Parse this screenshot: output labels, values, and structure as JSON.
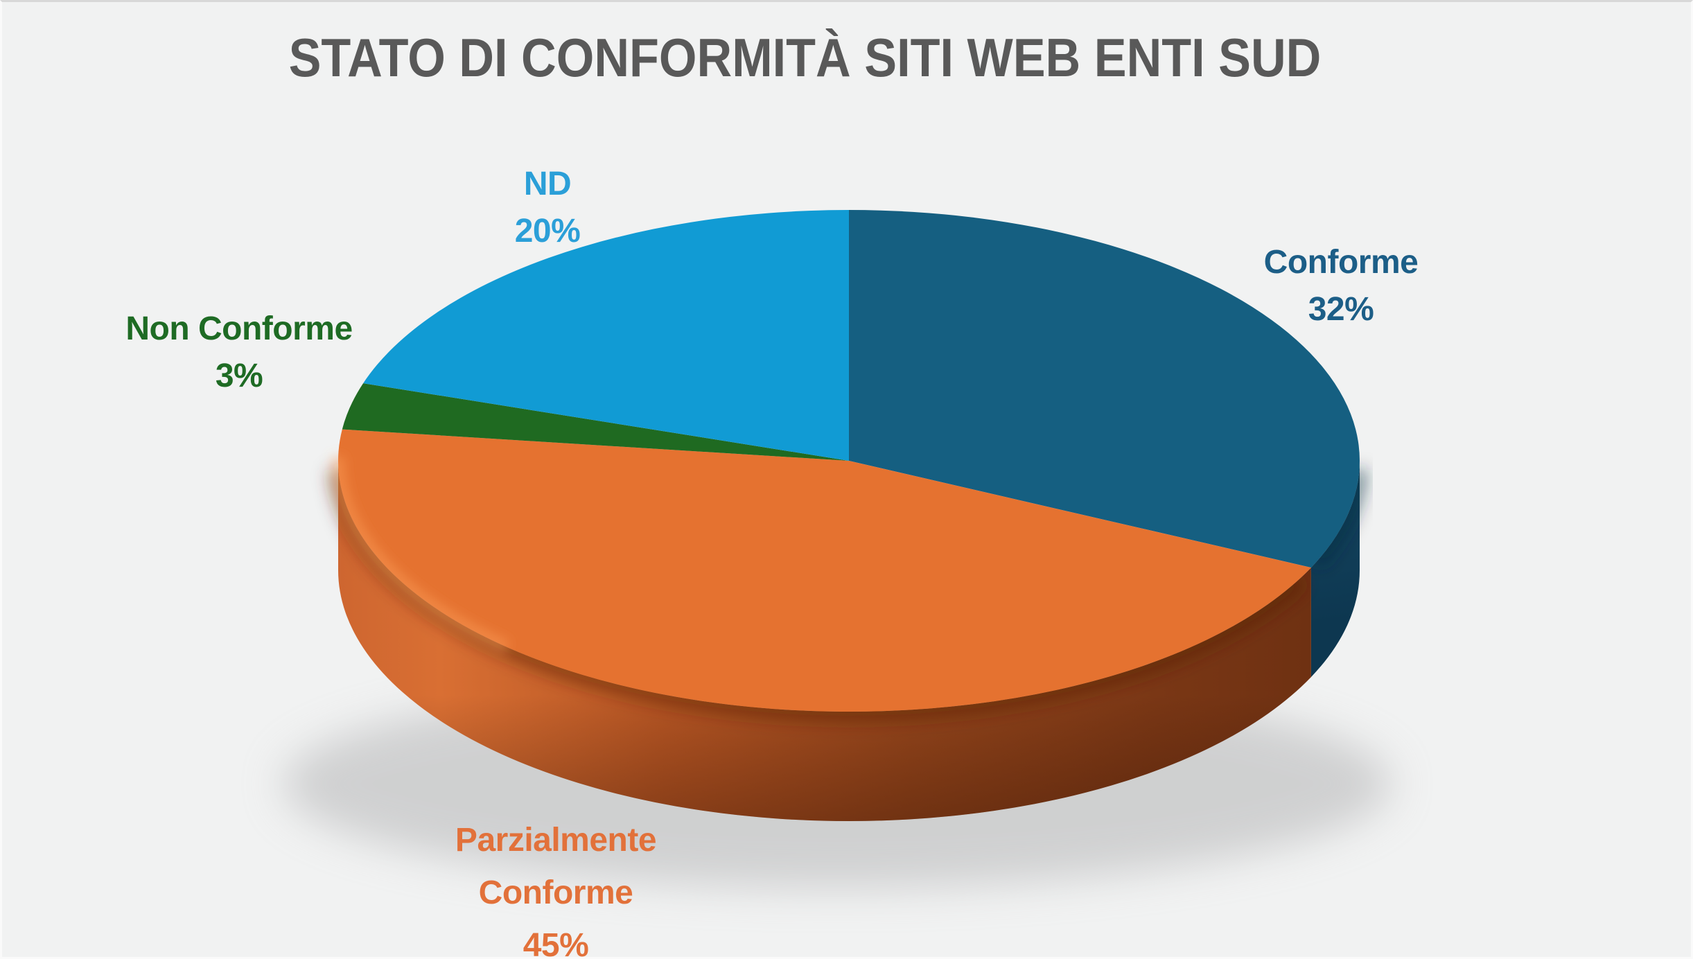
{
  "chart_data": {
    "type": "pie",
    "title": "STATO DI CONFORMITÀ SITI WEB ENTI SUD",
    "effect": "3d",
    "direction": "clockwise",
    "start_angle_deg": 0,
    "legend": "none",
    "labels_position": "outside",
    "slices": [
      {
        "id": "conforme",
        "label": "Conforme",
        "value": 32,
        "pct_label": "32%",
        "color": "#155F81",
        "label_color": "#1C5E87"
      },
      {
        "id": "parzialmente-conforme",
        "label": "Parzialmente Conforme",
        "value": 45,
        "pct_label": "45%",
        "color": "#E57230",
        "label_color": "#E2713A"
      },
      {
        "id": "non-conforme",
        "label": "Non Conforme",
        "value": 3,
        "pct_label": "3%",
        "color": "#1F6A21",
        "label_color": "#1E6B24"
      },
      {
        "id": "nd",
        "label": "ND",
        "value": 20,
        "pct_label": "20%",
        "color": "#119BD4",
        "label_color": "#2B9FD8"
      }
    ],
    "colors": {
      "title": "#595959",
      "background": "#F1F2F2"
    }
  }
}
